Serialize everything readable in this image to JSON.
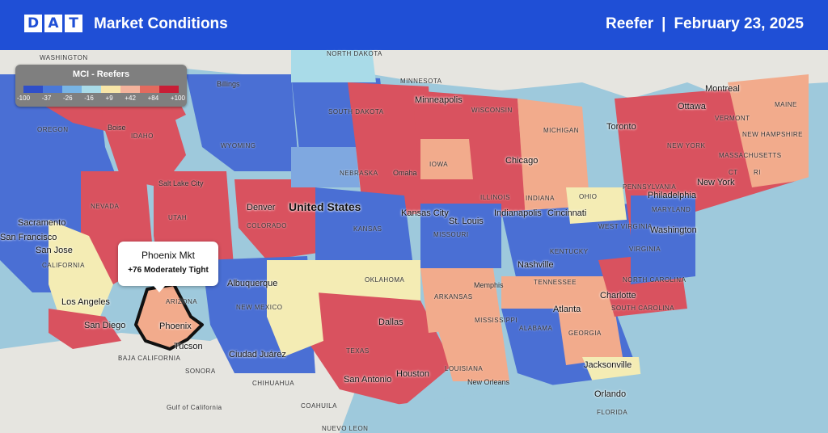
{
  "header": {
    "logo": [
      "D",
      "A",
      "T"
    ],
    "title": "Market Conditions",
    "segment": "Reefer",
    "separator": "|",
    "date": "February 23, 2025"
  },
  "legend": {
    "title": "MCI - Reefers",
    "ticks": [
      "-100",
      "-37",
      "-26",
      "-16",
      "+9",
      "+42",
      "+84",
      "+100"
    ],
    "colors": [
      "#2f4fc9",
      "#4a78d8",
      "#78b4e4",
      "#a9dbe8",
      "#f8e6a8",
      "#f4b39c",
      "#e36a5e",
      "#c81e36"
    ]
  },
  "callout": {
    "title": "Phoenix Mkt",
    "value": "+76 Moderately Tight"
  },
  "colors": {
    "ocean": "#9ec9dc",
    "land": "#e6e5e0",
    "header": "#1f4fd6",
    "very_loose": "#4a6fd4",
    "loose": "#7fa8e0",
    "neutral": "#f4ecb4",
    "tight": "#f2ab8c",
    "very_tight": "#d9525f"
  },
  "labels": {
    "big": "United States",
    "cities": [
      "Sacramento",
      "San Francisco",
      "San Jose",
      "Los Angeles",
      "San Diego",
      "Phoenix",
      "Tucson",
      "Albuquerque",
      "Denver",
      "Salt Lake City",
      "Ciudad Juárez",
      "Dallas",
      "San Antonio",
      "Houston",
      "New Orleans",
      "Kansas City",
      "St. Louis",
      "Omaha",
      "Minneapolis",
      "Chicago",
      "Indianapolis",
      "Cincinnati",
      "Nashville",
      "Memphis",
      "Atlanta",
      "Charlotte",
      "Jacksonville",
      "Orlando",
      "Washington",
      "Philadelphia",
      "New York",
      "Toronto",
      "Ottawa",
      "Montreal",
      "Boise",
      "Billings"
    ],
    "states": [
      "WASHINGTON",
      "OREGON",
      "IDAHO",
      "NEVADA",
      "CALIFORNIA",
      "UTAH",
      "ARIZONA",
      "WYOMING",
      "COLORADO",
      "NEW MEXICO",
      "NORTH DAKOTA",
      "SOUTH DAKOTA",
      "NEBRASKA",
      "KANSAS",
      "OKLAHOMA",
      "TEXAS",
      "MINNESOTA",
      "IOWA",
      "MISSOURI",
      "ARKANSAS",
      "LOUISIANA",
      "WISCONSIN",
      "ILLINOIS",
      "MICHIGAN",
      "INDIANA",
      "OHIO",
      "KENTUCKY",
      "TENNESSEE",
      "MISSISSIPPI",
      "ALABAMA",
      "GEORGIA",
      "FLORIDA",
      "SOUTH CAROLINA",
      "NORTH CAROLINA",
      "VIRGINIA",
      "WEST VIRGINIA",
      "PENNSYLVANIA",
      "NEW YORK",
      "MARYLAND",
      "VERMONT",
      "NEW HAMPSHIRE",
      "MASSACHUSETTS",
      "MAINE",
      "CT",
      "RI",
      "BAJA CALIFORNIA",
      "SONORA",
      "CHIHUAHUA",
      "COAHUILA",
      "NUEVO LEON",
      "Gulf of California"
    ]
  }
}
